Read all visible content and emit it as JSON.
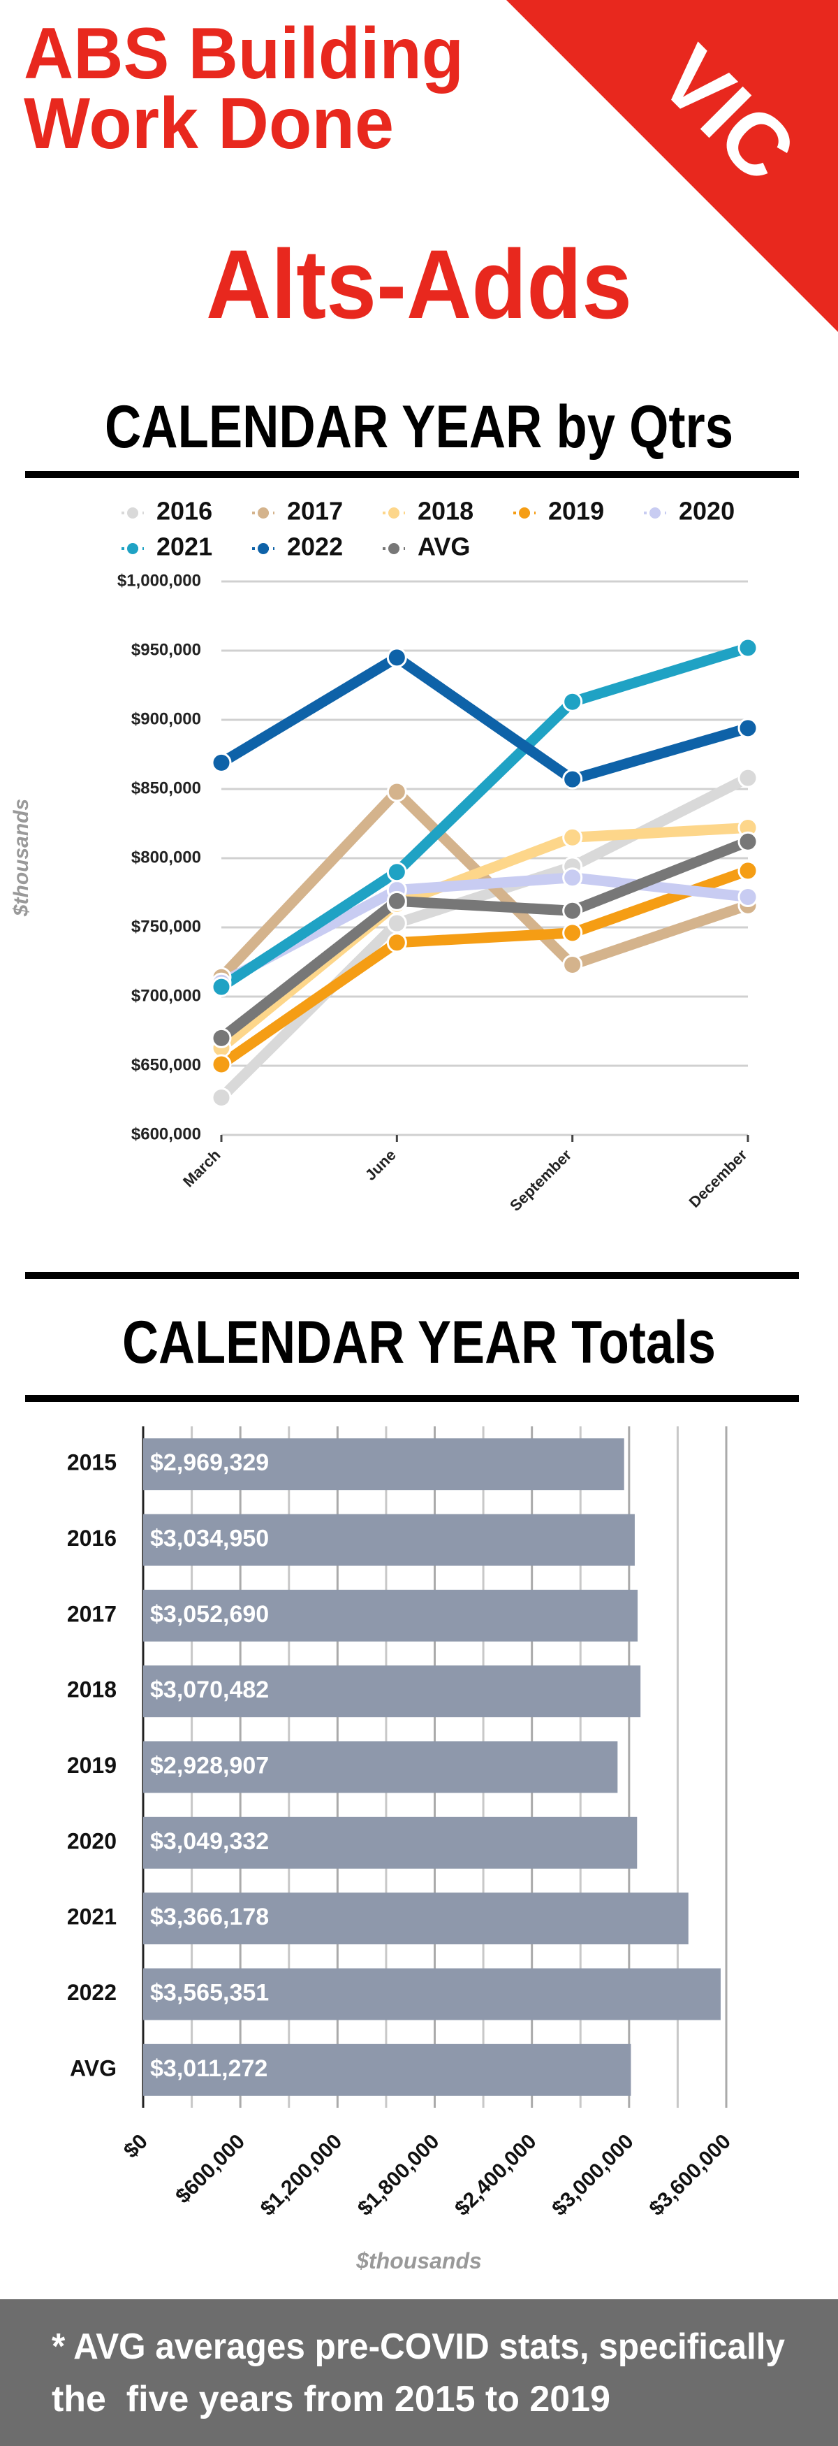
{
  "header": {
    "title_lines": [
      "ABS Building",
      "Work Done"
    ],
    "state": "VIC",
    "subtitle": "Alts-Adds"
  },
  "chart_data": [
    {
      "type": "line",
      "title": "CALENDAR YEAR by Qtrs",
      "y_label": "$thousands",
      "categories": [
        "March",
        "June",
        "September",
        "December"
      ],
      "series": [
        {
          "name": "2016",
          "color": "#d9d9d9",
          "values": [
            627000,
            753000,
            794000,
            858000
          ]
        },
        {
          "name": "2017",
          "color": "#d4b38c",
          "values": [
            714000,
            848000,
            723000,
            766000
          ]
        },
        {
          "name": "2018",
          "color": "#fdd68a",
          "values": [
            663000,
            767000,
            815000,
            822000
          ]
        },
        {
          "name": "2019",
          "color": "#f59d14",
          "values": [
            651000,
            739000,
            746000,
            791000
          ]
        },
        {
          "name": "2020",
          "color": "#c8ccf2",
          "values": [
            710000,
            777000,
            786000,
            772000
          ]
        },
        {
          "name": "2021",
          "color": "#1fa2c4",
          "values": [
            707000,
            790000,
            913000,
            952000
          ]
        },
        {
          "name": "2022",
          "color": "#0e62a8",
          "values": [
            869000,
            945000,
            857000,
            894000
          ]
        },
        {
          "name": "AVG",
          "color": "#777777",
          "values": [
            670000,
            769000,
            762000,
            812000
          ]
        }
      ],
      "ylim": [
        600000,
        1000000
      ],
      "yticks": [
        {
          "value": 600000,
          "label": "$600,000"
        },
        {
          "value": 650000,
          "label": "$650,000"
        },
        {
          "value": 700000,
          "label": "$700,000"
        },
        {
          "value": 750000,
          "label": "$750,000"
        },
        {
          "value": 800000,
          "label": "$800,000"
        },
        {
          "value": 850000,
          "label": "$850,000"
        },
        {
          "value": 900000,
          "label": "$900,000"
        },
        {
          "value": 950000,
          "label": "$950,000"
        },
        {
          "value": 1000000,
          "label": "$1,000,000"
        }
      ],
      "grid": true,
      "legend": "top"
    },
    {
      "type": "barh",
      "title": "CALENDAR YEAR Totals",
      "x_label": "$thousands",
      "categories": [
        "2015",
        "2016",
        "2017",
        "2018",
        "2019",
        "2020",
        "2021",
        "2022",
        "AVG"
      ],
      "values": [
        2969329,
        3034950,
        3052690,
        3070482,
        2928907,
        3049332,
        3366178,
        3565351,
        3011272
      ],
      "value_labels": [
        "$2,969,329",
        "$3,034,950",
        "$3,052,690",
        "$3,070,482",
        "$2,928,907",
        "$3,049,332",
        "$3,366,178",
        "$3,565,351",
        "$3,011,272"
      ],
      "color": "#8e98ab",
      "xlim": [
        0,
        3600000
      ],
      "xticks": [
        {
          "value": 0,
          "label": "$0"
        },
        {
          "value": 600000,
          "label": "$600,000"
        },
        {
          "value": 1200000,
          "label": "$1,200,000"
        },
        {
          "value": 1800000,
          "label": "$1,800,000"
        },
        {
          "value": 2400000,
          "label": "$2,400,000"
        },
        {
          "value": 3000000,
          "label": "$3,000,000"
        },
        {
          "value": 3600000,
          "label": "$3,600,000"
        }
      ],
      "x_minor_ticks": [
        300000,
        900000,
        1500000,
        2100000,
        2700000,
        3300000
      ],
      "grid": true
    }
  ],
  "footer": {
    "note_lines": [
      "* AVG averages pre-COVID stats, specifically",
      "the  five years from 2015 to 2019"
    ]
  }
}
